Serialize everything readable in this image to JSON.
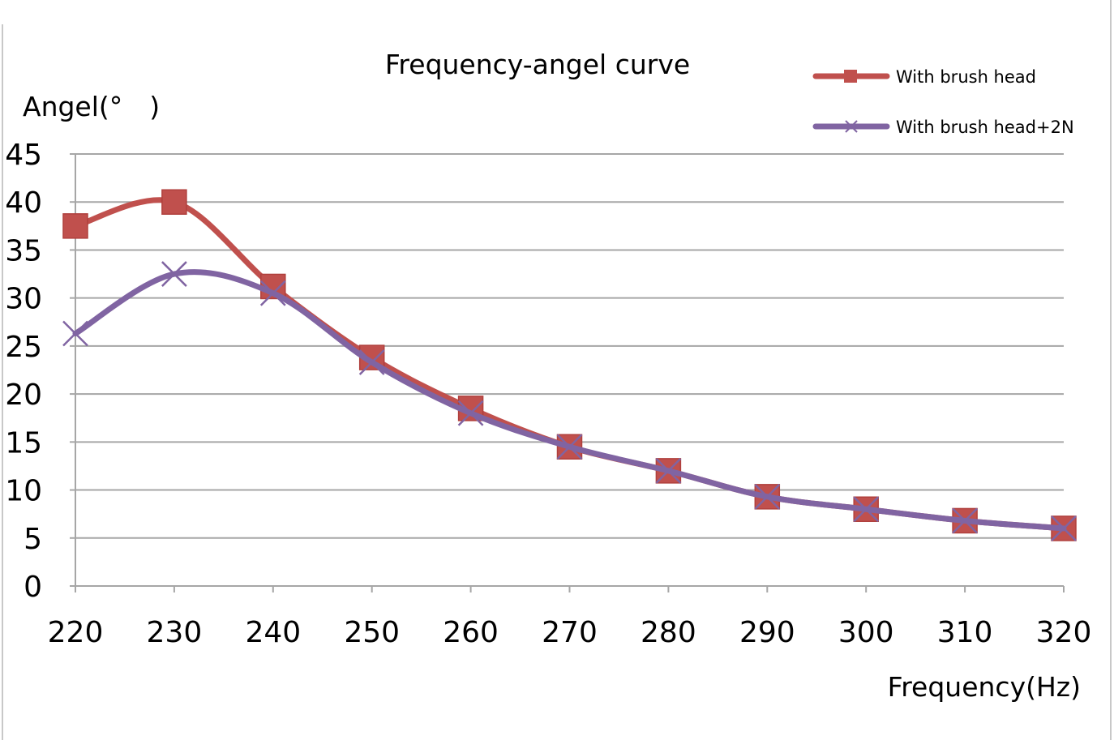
{
  "chart_data": {
    "type": "line",
    "title": "Frequency-angel curve",
    "xlabel": "Frequency(Hz)",
    "ylabel": "Angel(° )",
    "x": [
      220,
      230,
      240,
      250,
      260,
      270,
      280,
      290,
      300,
      310,
      320
    ],
    "xlim": [
      220,
      320
    ],
    "ylim": [
      0,
      45
    ],
    "y_ticks": [
      0,
      5,
      10,
      15,
      20,
      25,
      30,
      35,
      40,
      45
    ],
    "grid": true,
    "legend_position": "top-right",
    "smooth": true,
    "series": [
      {
        "name": "With brush head",
        "color": "#c0504d",
        "marker": "square",
        "values": [
          37.5,
          40,
          31.2,
          23.8,
          18.5,
          14.5,
          12,
          9.3,
          8,
          6.8,
          6
        ]
      },
      {
        "name": "With brush head+2N",
        "color": "#8064a2",
        "marker": "x",
        "values": [
          26.3,
          32.5,
          30.5,
          23.3,
          18,
          14.5,
          12,
          9.3,
          8,
          6.8,
          6
        ]
      }
    ]
  }
}
